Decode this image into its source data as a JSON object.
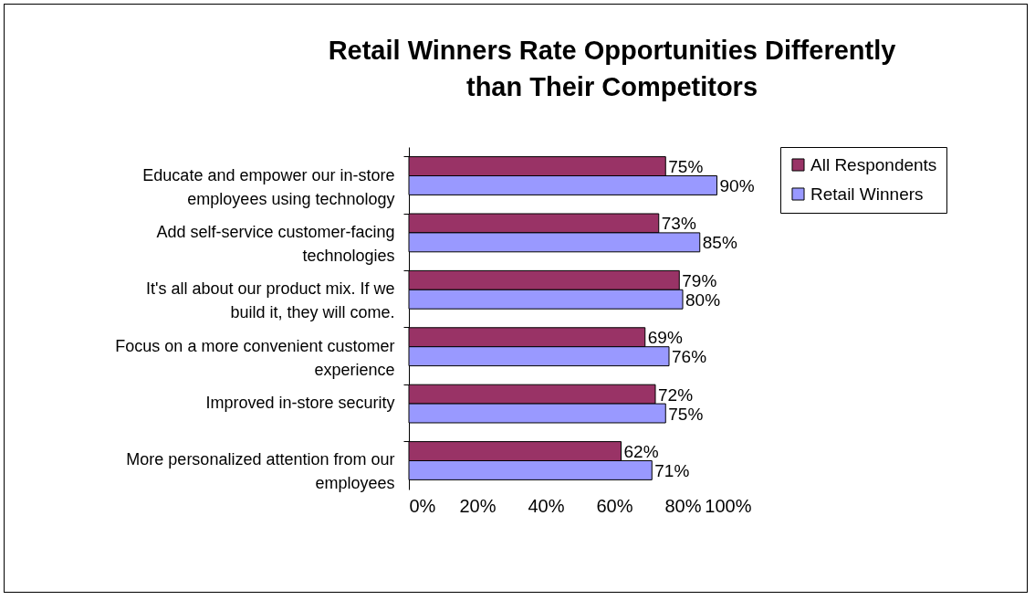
{
  "chart_data": {
    "type": "bar",
    "orientation": "horizontal",
    "title": "Retail Winners Rate Opportunities Differently than Their Competitors",
    "categories": [
      "Educate and empower our in-store employees using technology",
      "Add self-service customer-facing technologies",
      "It's all about our product mix. If we build it, they will come.",
      "Focus on a more convenient customer experience",
      "Improved in-store security",
      "More personalized attention from our employees"
    ],
    "series": [
      {
        "name": "All Respondents",
        "color": "#993366",
        "values": [
          75,
          73,
          79,
          69,
          72,
          62
        ],
        "value_labels": [
          "75%",
          "73%",
          "79%",
          "69%",
          "72%",
          "62%"
        ]
      },
      {
        "name": "Retail Winners",
        "color": "#9999ff",
        "values": [
          90,
          85,
          80,
          76,
          75,
          71
        ],
        "value_labels": [
          "90%",
          "85%",
          "80%",
          "76%",
          "75%",
          "71%"
        ]
      }
    ],
    "xlim": [
      0,
      100
    ],
    "xticks": [
      {
        "value": 0,
        "label": "0%"
      },
      {
        "value": 20,
        "label": "20%"
      },
      {
        "value": 40,
        "label": "40%"
      },
      {
        "value": 60,
        "label": "60%"
      },
      {
        "value": 80,
        "label": "80%"
      },
      {
        "value": 100,
        "label": "100%"
      }
    ],
    "grid": false,
    "legend": "right"
  }
}
